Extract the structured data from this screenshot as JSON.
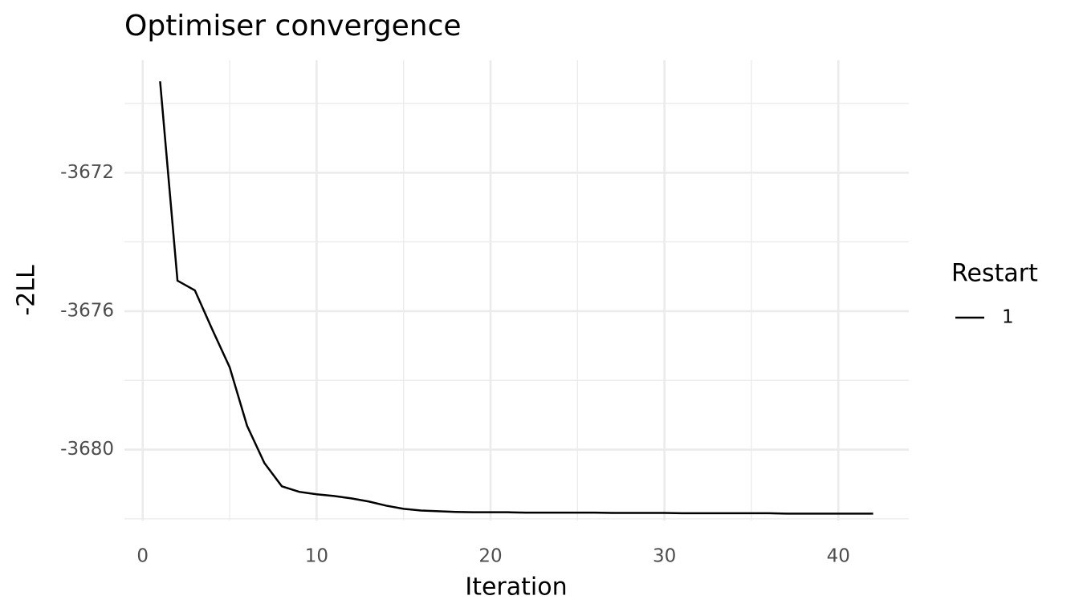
{
  "chart_data": {
    "type": "line",
    "title": "Optimiser convergence",
    "x_label": "Iteration",
    "y_label": "-2LL",
    "legend_title": "Restart",
    "legend": "right",
    "x": [
      1,
      2,
      3,
      4,
      5,
      6,
      7,
      8,
      9,
      10,
      11,
      12,
      13,
      14,
      15,
      16,
      17,
      18,
      19,
      20,
      21,
      22,
      23,
      24,
      25,
      26,
      27,
      28,
      29,
      30,
      31,
      32,
      33,
      34,
      35,
      36,
      37,
      38,
      39,
      40,
      41,
      42
    ],
    "series": [
      {
        "name": "1",
        "color": "#000000",
        "values": [
          -3669.36,
          -3675.12,
          -3675.4,
          -3676.53,
          -3677.62,
          -3679.31,
          -3680.39,
          -3681.06,
          -3681.22,
          -3681.29,
          -3681.34,
          -3681.41,
          -3681.5,
          -3681.62,
          -3681.71,
          -3681.76,
          -3681.78,
          -3681.8,
          -3681.81,
          -3681.81,
          -3681.81,
          -3681.82,
          -3681.82,
          -3681.82,
          -3681.82,
          -3681.82,
          -3681.83,
          -3681.83,
          -3681.83,
          -3681.83,
          -3681.84,
          -3681.84,
          -3681.84,
          -3681.84,
          -3681.84,
          -3681.84,
          -3681.85,
          -3681.85,
          -3681.85,
          -3681.85,
          -3681.85,
          -3681.85
        ]
      }
    ],
    "xlim": [
      -1.05,
      44.05
    ],
    "xticks": [
      0,
      10,
      20,
      30,
      40
    ],
    "xminor": [
      5,
      15,
      25,
      35
    ],
    "ylim": [
      -3682.05,
      -3668.75
    ],
    "yticks": [
      -3672,
      -3676,
      -3680
    ],
    "yminor": [
      -3670,
      -3674,
      -3678,
      -3682
    ],
    "grid": true
  }
}
